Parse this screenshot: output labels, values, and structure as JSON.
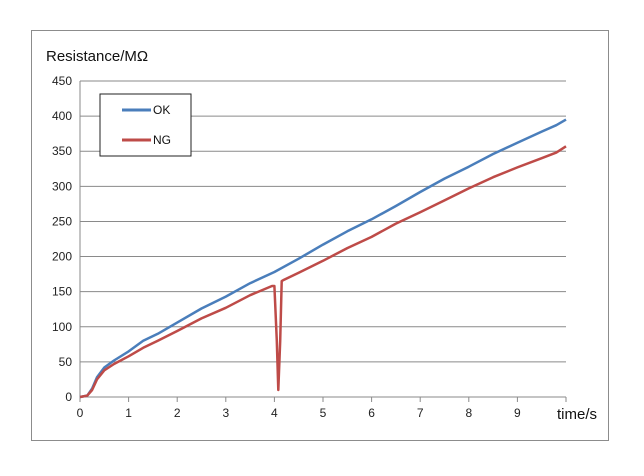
{
  "chart_data": {
    "type": "line",
    "ylabel": "Resistance/MΩ",
    "xlabel": "time/s",
    "xlim": [
      0,
      10
    ],
    "ylim": [
      0,
      450
    ],
    "x_ticks": [
      0,
      1,
      2,
      3,
      4,
      5,
      6,
      7,
      8,
      9
    ],
    "y_ticks": [
      0,
      50,
      100,
      150,
      200,
      250,
      300,
      350,
      400,
      450
    ],
    "grid": "horizontal",
    "legend_position": "top-left",
    "series": [
      {
        "name": "OK",
        "color": "#4a7ebb",
        "x": [
          0,
          0.15,
          0.25,
          0.35,
          0.5,
          0.7,
          1.0,
          1.3,
          1.6,
          2.0,
          2.5,
          3.0,
          3.5,
          4.0,
          4.5,
          5.0,
          5.5,
          6.0,
          6.5,
          7.0,
          7.5,
          8.0,
          8.5,
          9.0,
          9.5,
          9.8,
          10.0
        ],
        "y": [
          0,
          2,
          12,
          28,
          42,
          52,
          65,
          80,
          90,
          106,
          126,
          143,
          162,
          178,
          197,
          217,
          236,
          253,
          272,
          292,
          311,
          328,
          346,
          362,
          378,
          387,
          395
        ]
      },
      {
        "name": "NG",
        "color": "#be4b48",
        "x": [
          0,
          0.15,
          0.25,
          0.35,
          0.5,
          0.7,
          1.0,
          1.3,
          1.6,
          2.0,
          2.5,
          3.0,
          3.5,
          3.95,
          4.0,
          4.05,
          4.08,
          4.12,
          4.15,
          4.2,
          4.5,
          5.0,
          5.5,
          6.0,
          6.5,
          7.0,
          7.5,
          8.0,
          8.5,
          9.0,
          9.5,
          9.8,
          10.0
        ],
        "y": [
          0,
          2,
          10,
          25,
          38,
          47,
          58,
          70,
          80,
          94,
          112,
          127,
          145,
          158,
          158,
          80,
          10,
          80,
          165,
          167,
          177,
          194,
          212,
          228,
          247,
          263,
          280,
          297,
          313,
          327,
          340,
          348,
          357
        ]
      }
    ]
  }
}
